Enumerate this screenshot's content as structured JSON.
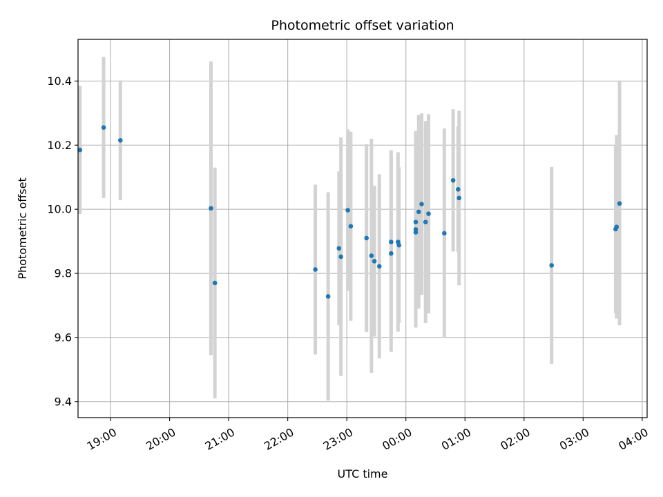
{
  "chart_data": {
    "type": "scatter",
    "title": "Photometric offset variation",
    "xlabel": "UTC time",
    "ylabel": "Photometric offset",
    "x_axis_kind": "time",
    "xlim": [
      "18:27",
      "04:05"
    ],
    "ylim": [
      9.35,
      10.53
    ],
    "grid": true,
    "x_ticks": [
      {
        "label": "19:00",
        "t": "19:00"
      },
      {
        "label": "20:00",
        "t": "20:00"
      },
      {
        "label": "21:00",
        "t": "21:00"
      },
      {
        "label": "22:00",
        "t": "22:00"
      },
      {
        "label": "23:00",
        "t": "23:00"
      },
      {
        "label": "00:00",
        "t": "00:00"
      },
      {
        "label": "01:00",
        "t": "01:00"
      },
      {
        "label": "02:00",
        "t": "02:00"
      },
      {
        "label": "03:00",
        "t": "03:00"
      },
      {
        "label": "04:00",
        "t": "04:00"
      }
    ],
    "y_ticks": [
      {
        "label": "9.4",
        "value": 9.4
      },
      {
        "label": "9.6",
        "value": 9.6
      },
      {
        "label": "9.8",
        "value": 9.8
      },
      {
        "label": "10.0",
        "value": 10.0
      },
      {
        "label": "10.2",
        "value": 10.2
      },
      {
        "label": "10.4",
        "value": 10.4
      }
    ],
    "marker_color": "#1f77b4",
    "errorbar_color": "#d3d3d3",
    "points": [
      {
        "t": "18:29",
        "y": 10.185,
        "lo": 9.985,
        "hi": 10.385
      },
      {
        "t": "18:53",
        "y": 10.255,
        "lo": 10.035,
        "hi": 10.475
      },
      {
        "t": "19:10",
        "y": 10.215,
        "lo": 10.028,
        "hi": 10.402
      },
      {
        "t": "20:42",
        "y": 10.003,
        "lo": 9.545,
        "hi": 10.461
      },
      {
        "t": "20:46",
        "y": 9.77,
        "lo": 9.41,
        "hi": 10.13
      },
      {
        "t": "22:28",
        "y": 9.812,
        "lo": 9.547,
        "hi": 10.077
      },
      {
        "t": "22:41",
        "y": 9.728,
        "lo": 9.403,
        "hi": 10.053
      },
      {
        "t": "22:52",
        "y": 9.878,
        "lo": 9.638,
        "hi": 10.118
      },
      {
        "t": "22:54",
        "y": 9.852,
        "lo": 9.48,
        "hi": 10.224
      },
      {
        "t": "23:01",
        "y": 9.997,
        "lo": 9.745,
        "hi": 10.249
      },
      {
        "t": "23:04",
        "y": 9.947,
        "lo": 9.652,
        "hi": 10.242
      },
      {
        "t": "23:20",
        "y": 9.91,
        "lo": 9.617,
        "hi": 10.203
      },
      {
        "t": "23:25",
        "y": 9.855,
        "lo": 9.49,
        "hi": 10.22
      },
      {
        "t": "23:28",
        "y": 9.838,
        "lo": 9.603,
        "hi": 10.073
      },
      {
        "t": "23:33",
        "y": 9.822,
        "lo": 9.535,
        "hi": 10.109
      },
      {
        "t": "23:45",
        "y": 9.862,
        "lo": 9.555,
        "hi": 10.169
      },
      {
        "t": "23:45",
        "y": 9.898,
        "lo": 9.612,
        "hi": 10.184
      },
      {
        "t": "23:52",
        "y": 9.898,
        "lo": 9.618,
        "hi": 10.178
      },
      {
        "t": "23:53",
        "y": 9.888,
        "lo": 9.645,
        "hi": 10.131
      },
      {
        "t": "00:10",
        "y": 9.928,
        "lo": 9.695,
        "hi": 10.161
      },
      {
        "t": "00:10",
        "y": 9.937,
        "lo": 9.631,
        "hi": 10.243
      },
      {
        "t": "00:10",
        "y": 9.96,
        "lo": 9.676,
        "hi": 10.244
      },
      {
        "t": "00:13",
        "y": 9.992,
        "lo": 9.69,
        "hi": 10.294
      },
      {
        "t": "00:16",
        "y": 10.016,
        "lo": 9.733,
        "hi": 10.299
      },
      {
        "t": "00:20",
        "y": 9.96,
        "lo": 9.645,
        "hi": 10.275
      },
      {
        "t": "00:23",
        "y": 9.986,
        "lo": 9.675,
        "hi": 10.297
      },
      {
        "t": "00:39",
        "y": 9.925,
        "lo": 9.598,
        "hi": 10.252
      },
      {
        "t": "00:48",
        "y": 10.09,
        "lo": 9.868,
        "hi": 10.312
      },
      {
        "t": "00:53",
        "y": 10.062,
        "lo": 9.866,
        "hi": 10.258
      },
      {
        "t": "00:54",
        "y": 10.035,
        "lo": 9.763,
        "hi": 10.307
      },
      {
        "t": "02:28",
        "y": 9.825,
        "lo": 9.518,
        "hi": 10.132
      },
      {
        "t": "03:33",
        "y": 9.938,
        "lo": 9.676,
        "hi": 10.2
      },
      {
        "t": "03:34",
        "y": 9.945,
        "lo": 9.659,
        "hi": 10.231
      },
      {
        "t": "03:37",
        "y": 10.018,
        "lo": 9.638,
        "hi": 10.398
      }
    ]
  }
}
